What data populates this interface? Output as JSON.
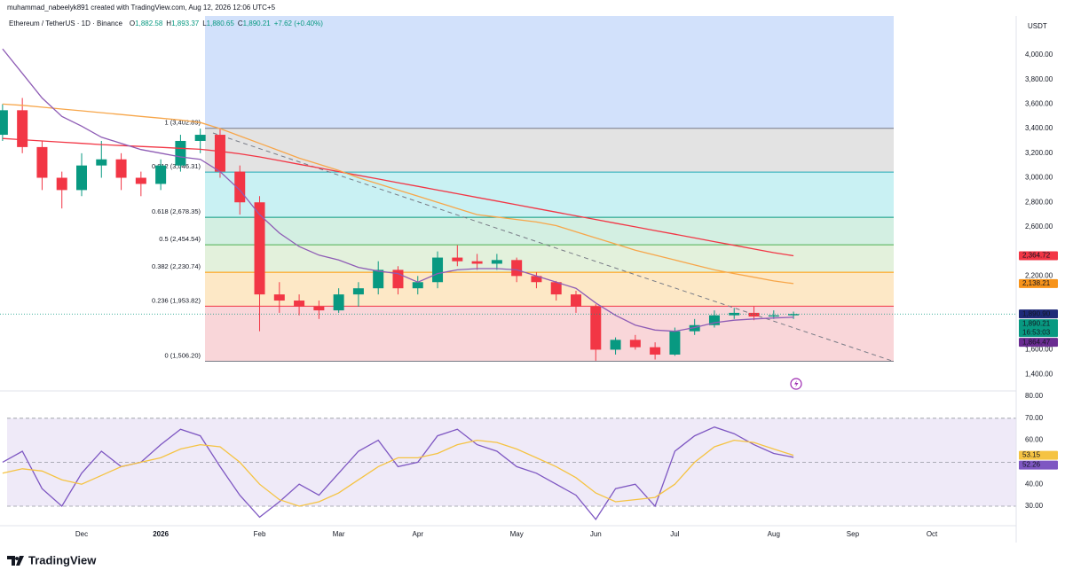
{
  "header": {
    "credit": "muhammad_nabeelyk891 created with TradingView.com, Aug 12, 2026 12:06 UTC+5",
    "symbol": "Ethereum / TetherUS · 1D · Binance",
    "ohlc": [
      {
        "label": "O",
        "value": "1,882.58"
      },
      {
        "label": "H",
        "value": "1,893.37"
      },
      {
        "label": "L",
        "value": "1,880.65"
      },
      {
        "label": "C",
        "value": "1,890.21"
      }
    ],
    "change": "+7.62 (+0.40%)",
    "currency": "USDT"
  },
  "footer": {
    "logo": "TradingView"
  },
  "chart_data": [
    {
      "type": "candlestick",
      "categories": [
        null,
        null,
        null,
        null,
        "Dec",
        null,
        null,
        null,
        "2026",
        null,
        null,
        null,
        null,
        "Feb",
        null,
        null,
        null,
        "Mar",
        null,
        null,
        null,
        "Apr",
        null,
        null,
        null,
        null,
        "May",
        null,
        null,
        null,
        "Jun",
        null,
        null,
        null,
        "Jul",
        null,
        null,
        null,
        null,
        "Aug",
        null,
        null,
        null,
        "Sep",
        null,
        null,
        null,
        "Oct"
      ],
      "open": [
        3350,
        3550,
        3250,
        3000,
        2900,
        3100,
        3150,
        3000,
        2950,
        3100,
        3300,
        3350,
        3050,
        2800,
        2050,
        2000,
        1950,
        1920,
        2050,
        2100,
        2250,
        2100,
        2150,
        2350,
        2320,
        2300,
        2330,
        2200,
        2150,
        2050,
        1950,
        1600,
        1680,
        1620,
        1560,
        1750,
        1800,
        1880,
        1900,
        1870,
        1880,
        null,
        null,
        null,
        null,
        null,
        null,
        null
      ],
      "high": [
        3600,
        3650,
        3300,
        3050,
        3200,
        3300,
        3200,
        3050,
        3150,
        3350,
        3400,
        3400,
        3100,
        2850,
        2150,
        2050,
        2000,
        2100,
        2150,
        2320,
        2280,
        2200,
        2400,
        2450,
        2380,
        2380,
        2350,
        2230,
        2160,
        2080,
        1970,
        1700,
        1720,
        1660,
        1780,
        1850,
        1920,
        1940,
        1950,
        1920,
        1910,
        null,
        null,
        null,
        null,
        null,
        null,
        null
      ],
      "low": [
        3300,
        3200,
        2900,
        2750,
        2850,
        3000,
        2900,
        2850,
        2900,
        3050,
        3200,
        3000,
        2700,
        1750,
        1900,
        1880,
        1850,
        1900,
        1950,
        2050,
        2050,
        2050,
        2100,
        2280,
        2250,
        2250,
        2150,
        2100,
        2000,
        1900,
        1510,
        1560,
        1600,
        1520,
        1550,
        1720,
        1780,
        1850,
        1840,
        1850,
        1850,
        null,
        null,
        null,
        null,
        null,
        null,
        null
      ],
      "close": [
        3550,
        3250,
        3000,
        2900,
        3100,
        3150,
        3000,
        2950,
        3100,
        3300,
        3350,
        3050,
        2800,
        2050,
        2000,
        1950,
        1920,
        2050,
        2100,
        2250,
        2100,
        2150,
        2350,
        2320,
        2300,
        2330,
        2200,
        2150,
        2050,
        1950,
        1600,
        1680,
        1620,
        1560,
        1750,
        1800,
        1880,
        1900,
        1870,
        1880,
        1890.21,
        null,
        null,
        null,
        null,
        null,
        null,
        null
      ],
      "up_color": "#089981",
      "down_color": "#f23645",
      "series": [
        {
          "color": "#f23645",
          "values": [
            3320,
            3310,
            3300,
            3290,
            3280,
            3270,
            3262,
            3255,
            3248,
            3240,
            3232,
            3215,
            3195,
            3170,
            3140,
            3110,
            3080,
            3050,
            3020,
            2990,
            2960,
            2930,
            2900,
            2870,
            2840,
            2810,
            2780,
            2750,
            2720,
            2690,
            2660,
            2630,
            2600,
            2570,
            2540,
            2510,
            2480,
            2450,
            2420,
            2390,
            2364.72,
            null,
            null,
            null,
            null,
            null,
            null,
            null
          ]
        },
        {
          "color": "#f7a64a",
          "values": [
            3600,
            3590,
            3575,
            3560,
            3545,
            3530,
            3515,
            3500,
            3485,
            3470,
            3450,
            3400,
            3340,
            3280,
            3220,
            3160,
            3110,
            3060,
            3000,
            2950,
            2900,
            2850,
            2800,
            2750,
            2700,
            2680,
            2660,
            2640,
            2610,
            2560,
            2510,
            2460,
            2410,
            2370,
            2330,
            2290,
            2250,
            2220,
            2190,
            2160,
            2138.21,
            null,
            null,
            null,
            null,
            null,
            null,
            null
          ]
        },
        {
          "color": "#8e5cb5",
          "values": [
            4050,
            3850,
            3650,
            3500,
            3420,
            3330,
            3280,
            3230,
            3200,
            3170,
            3150,
            3050,
            2900,
            2700,
            2550,
            2440,
            2370,
            2330,
            2270,
            2240,
            2220,
            2150,
            2220,
            2250,
            2260,
            2260,
            2250,
            2200,
            2150,
            2100,
            1980,
            1880,
            1800,
            1760,
            1750,
            1780,
            1820,
            1840,
            1850,
            1858,
            1864.47,
            null,
            null,
            null,
            null,
            null,
            null,
            null
          ]
        }
      ],
      "fib_levels": [
        {
          "label": "1 (3,402.89)",
          "value": 3402.89,
          "color": "#787b86",
          "fill": "#e3e3e3"
        },
        {
          "label": "0.812 (3,046.31)",
          "value": 3046.31,
          "color": "#22a9b5",
          "fill": "#c9f1f3"
        },
        {
          "label": "0.618 (2,678.35)",
          "value": 2678.35,
          "color": "#089981",
          "fill": "#d3efe2"
        },
        {
          "label": "0.5 (2,454.54)",
          "value": 2454.54,
          "color": "#4caf50",
          "fill": "#e3f1dc"
        },
        {
          "label": "0.382 (2,230.74)",
          "value": 2230.74,
          "color": "#ff9800",
          "fill": "#fde8c6"
        },
        {
          "label": "0.236 (1,953.82)",
          "value": 1953.82,
          "color": "#f23645",
          "fill": "#f9d6d9"
        },
        {
          "label": "0 (1,506.20)",
          "value": 1506.2,
          "color": "#787b86",
          "fill": null
        }
      ],
      "fib_upper_fill": "#d2e1fb",
      "price_tags": [
        {
          "value": 2364.72,
          "label": "2,364.72",
          "color": "#f23645"
        },
        {
          "value": 2138.21,
          "label": "2,138.21",
          "color": "#f7931a"
        },
        {
          "value": 1890.9,
          "label": "1,890.90",
          "color": "#1e2a78"
        },
        {
          "value": 1890.21,
          "label": "1,890.21",
          "sublabel": "16:53:03",
          "color": "#089981"
        },
        {
          "value": 1864.47,
          "label": "1,864.47",
          "color": "#6a2c91"
        }
      ],
      "ylim": [
        1300,
        4300
      ],
      "yticks": [
        {
          "value": 4000,
          "label": "4,000.00"
        },
        {
          "value": 3800,
          "label": "3,800.00"
        },
        {
          "value": 3600,
          "label": "3,600.00"
        },
        {
          "value": 3400,
          "label": "3,400.00"
        },
        {
          "value": 3200,
          "label": "3,200.00"
        },
        {
          "value": 3000,
          "label": "3,000.00"
        },
        {
          "value": 2800,
          "label": "2,800.00"
        },
        {
          "value": 2600,
          "label": "2,600.00"
        },
        {
          "value": 2200,
          "label": "2,200.00"
        },
        {
          "value": 1600,
          "label": "1,600.00"
        },
        {
          "value": 1400,
          "label": "1,400.00"
        }
      ],
      "grid": false
    },
    {
      "type": "line",
      "series": [
        {
          "color": "#7e57c2",
          "values": [
            50,
            55,
            38,
            30,
            45,
            55,
            48,
            50,
            58,
            65,
            62,
            48,
            35,
            25,
            32,
            40,
            35,
            45,
            55,
            60,
            48,
            50,
            62,
            65,
            58,
            55,
            48,
            45,
            40,
            35,
            24,
            38,
            40,
            30,
            55,
            62,
            66,
            63,
            58,
            54,
            52.26,
            null,
            null,
            null,
            null,
            null,
            null,
            null
          ]
        },
        {
          "color": "#f5c342",
          "values": [
            45,
            47,
            46,
            42,
            40,
            44,
            48,
            50,
            52,
            56,
            58,
            57,
            50,
            40,
            33,
            30,
            32,
            36,
            42,
            48,
            52,
            52,
            54,
            58,
            60,
            59,
            56,
            52,
            48,
            43,
            36,
            32,
            33,
            34,
            40,
            50,
            57,
            60,
            59,
            56,
            53.15,
            null,
            null,
            null,
            null,
            null,
            null,
            null
          ]
        }
      ],
      "bands": [
        70,
        50,
        30
      ],
      "band_fill": "#efeaf8",
      "value_tags": [
        {
          "value": 53.15,
          "label": "53.15",
          "color": "#f5c342"
        },
        {
          "value": 52.26,
          "label": "52.26",
          "color": "#7e57c2"
        }
      ],
      "ylim": [
        20,
        80
      ],
      "yticks": [
        {
          "value": 80,
          "label": "80.00"
        },
        {
          "value": 70,
          "label": "70.00"
        },
        {
          "value": 60,
          "label": "60.00"
        },
        {
          "value": 40,
          "label": "40.00"
        },
        {
          "value": 30,
          "label": "30.00"
        }
      ],
      "grid": false
    }
  ]
}
